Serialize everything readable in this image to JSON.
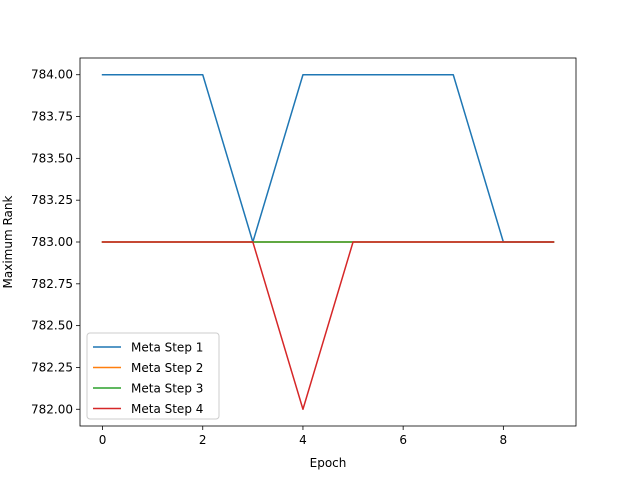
{
  "chart_data": {
    "type": "line",
    "title": "",
    "xlabel": "Epoch",
    "ylabel": "Maximum Rank",
    "x": [
      0,
      1,
      2,
      3,
      4,
      5,
      6,
      7,
      8,
      9
    ],
    "xlim": [
      -0.45,
      9.45
    ],
    "ylim": [
      781.9,
      784.1
    ],
    "xticks": [
      0,
      2,
      4,
      6,
      8
    ],
    "yticks": [
      782.0,
      782.25,
      782.5,
      782.75,
      783.0,
      783.25,
      783.5,
      783.75,
      784.0
    ],
    "xtick_labels": [
      "0",
      "2",
      "4",
      "6",
      "8"
    ],
    "ytick_labels": [
      "782.00",
      "782.25",
      "782.50",
      "782.75",
      "783.00",
      "783.25",
      "783.50",
      "783.75",
      "784.00"
    ],
    "grid": false,
    "legend_position": "lower-left",
    "series": [
      {
        "name": "Meta Step 1",
        "color": "#1f77b4",
        "values": [
          784,
          784,
          784,
          783,
          784,
          784,
          784,
          784,
          783,
          783
        ]
      },
      {
        "name": "Meta Step 2",
        "color": "#ff7f0e",
        "values": [
          783,
          783,
          783,
          783,
          783,
          783,
          783,
          783,
          783,
          783
        ]
      },
      {
        "name": "Meta Step 3",
        "color": "#2ca02c",
        "values": [
          783,
          783,
          783,
          783,
          783,
          783,
          783,
          783,
          783,
          783
        ]
      },
      {
        "name": "Meta Step 4",
        "color": "#d62728",
        "values": [
          783,
          783,
          783,
          783,
          782,
          783,
          783,
          783,
          783,
          783
        ]
      }
    ]
  }
}
